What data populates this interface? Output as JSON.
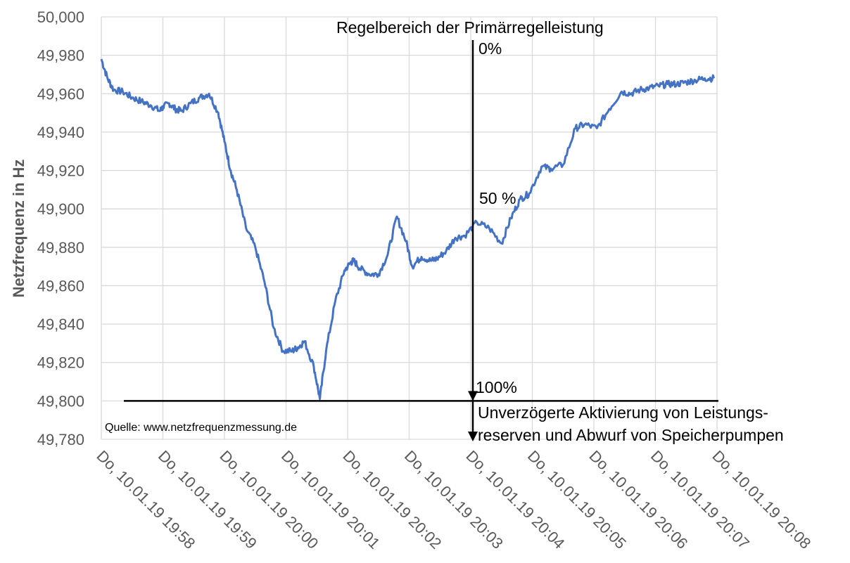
{
  "chart_data": {
    "type": "line",
    "xlabel": "",
    "ylabel": "Netzfrequenz in Hz",
    "ylim": [
      49.78,
      50.0
    ],
    "ytick_labels": [
      "50,000",
      "49,980",
      "49,960",
      "49,940",
      "49,920",
      "49,900",
      "49,880",
      "49,860",
      "49,840",
      "49,820",
      "49,800",
      "49,780"
    ],
    "ytick_values": [
      50.0,
      49.98,
      49.96,
      49.94,
      49.92,
      49.9,
      49.88,
      49.86,
      49.84,
      49.82,
      49.8,
      49.78
    ],
    "xtick_labels": [
      "Do, 10.01.19 19:58",
      "Do, 10.01.19 19:59",
      "Do, 10.01.19 20:00",
      "Do, 10.01.19 20:01",
      "Do, 10.01.19 20:02",
      "Do, 10.01.19 20:03",
      "Do, 10.01.19 20:04",
      "Do, 10.01.19 20:05",
      "Do, 10.01.19 20:06",
      "Do, 10.01.19 20:07",
      "Do, 10.01.19 20:08"
    ],
    "xlim_minutes": [
      0,
      10
    ],
    "grid": true,
    "series": [
      {
        "name": "Netzfrequenz",
        "color": "#4472C4",
        "x_minutes": [
          0,
          0.1,
          0.2,
          0.35,
          0.5,
          0.65,
          0.8,
          0.95,
          1.0,
          1.1,
          1.2,
          1.3,
          1.45,
          1.6,
          1.75,
          1.9,
          2.0,
          2.1,
          2.2,
          2.35,
          2.5,
          2.65,
          2.8,
          2.95,
          3.1,
          3.2,
          3.3,
          3.45,
          3.55,
          3.65,
          3.8,
          3.95,
          4.05,
          4.1,
          4.2,
          4.35,
          4.5,
          4.65,
          4.8,
          4.95,
          5.05,
          5.2,
          5.35,
          5.45,
          5.6,
          5.75,
          5.9,
          6.1,
          6.3,
          6.5,
          6.65,
          6.8,
          6.95,
          7.15,
          7.3,
          7.5,
          7.7,
          7.85,
          8.05,
          8.25,
          8.45,
          8.6,
          8.75,
          8.9,
          9.05,
          9.2,
          9.35,
          9.5,
          9.65,
          9.8,
          9.95
        ],
        "values": [
          49.978,
          49.968,
          49.962,
          49.961,
          49.958,
          49.956,
          49.954,
          49.951,
          49.953,
          49.955,
          49.952,
          49.951,
          49.955,
          49.958,
          49.96,
          49.95,
          49.935,
          49.92,
          49.91,
          49.89,
          49.88,
          49.862,
          49.838,
          49.826,
          49.826,
          49.828,
          49.831,
          49.818,
          49.801,
          49.826,
          49.852,
          49.868,
          49.872,
          49.873,
          49.869,
          49.866,
          49.866,
          49.876,
          49.896,
          49.883,
          49.87,
          49.875,
          49.873,
          49.874,
          49.878,
          49.885,
          49.886,
          49.893,
          49.89,
          49.882,
          49.895,
          49.905,
          49.908,
          49.922,
          49.921,
          49.923,
          49.942,
          49.944,
          49.942,
          49.952,
          49.961,
          49.96,
          49.962,
          49.963,
          49.964,
          49.965,
          49.965,
          49.966,
          49.967,
          49.968,
          49.968
        ]
      }
    ],
    "annotations": {
      "title_region": "Regelbereich der Primärregelleistung",
      "pct_0": "0%",
      "pct_50": "50 %",
      "pct_100": "100%",
      "note_line1": "Unverzögerte Aktivierung von Leistungs-",
      "note_line2": "reserven und Abwurf von Speicherpumpen",
      "source": "Quelle: www.netzfrequenzmessung.de",
      "horizontal_line_value": 49.8,
      "arrow_x_minutes": 6.0
    }
  },
  "colors": {
    "line": "#4472C4",
    "grid": "#D9D9D9",
    "axis_text": "#595959",
    "annotation": "#000000"
  }
}
